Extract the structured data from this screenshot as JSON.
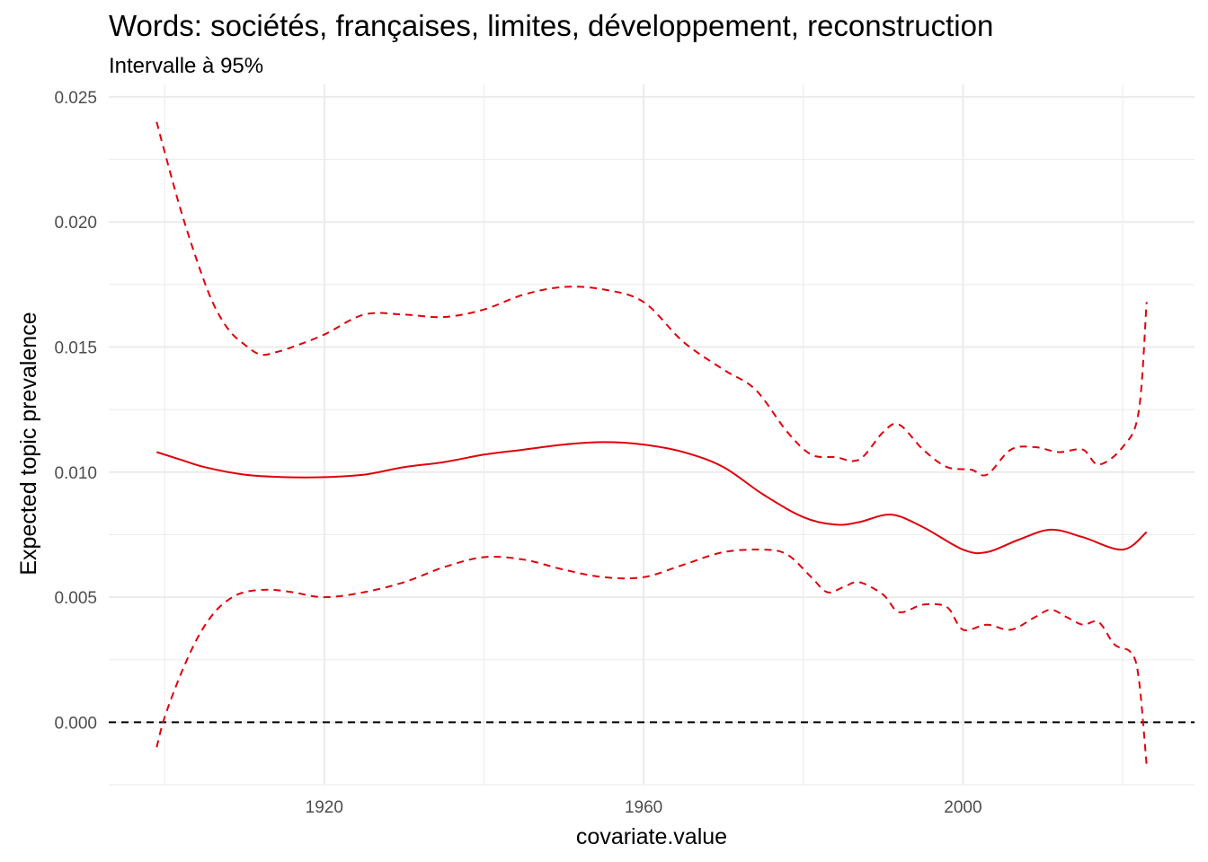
{
  "chart_data": {
    "type": "line",
    "title": "Words: sociétés, françaises, limites, développement, reconstruction",
    "subtitle": "Intervalle à 95%",
    "xlabel": "covariate.value",
    "ylabel": "Expected topic prevalence",
    "xlim": [
      1893,
      2029
    ],
    "ylim": [
      -0.0025,
      0.0255
    ],
    "x_ticks": [
      1920,
      1960,
      2000
    ],
    "x_tick_labels": [
      "1920",
      "1960",
      "2000"
    ],
    "y_ticks": [
      0.0,
      0.005,
      0.01,
      0.015,
      0.02,
      0.025
    ],
    "y_tick_labels": [
      "0.000",
      "0.005",
      "0.010",
      "0.015",
      "0.020",
      "0.025"
    ],
    "grid": true,
    "reference_line": {
      "y": 0,
      "style": "dashed",
      "color": "#000000"
    },
    "colors": {
      "series": "#e0000b",
      "reference": "#000000",
      "grid": "#ebebeb"
    },
    "series": [
      {
        "role": "estimate",
        "style": "solid",
        "x": [
          1899,
          1902,
          1905,
          1910,
          1915,
          1920,
          1925,
          1930,
          1935,
          1940,
          1945,
          1950,
          1955,
          1960,
          1965,
          1970,
          1975,
          1980,
          1984,
          1987,
          1991,
          1995,
          2000,
          2003,
          2007,
          2011,
          2015,
          2020,
          2023
        ],
        "y": [
          0.0108,
          0.0105,
          0.0102,
          0.0099,
          0.0098,
          0.0098,
          0.0099,
          0.0102,
          0.0104,
          0.0107,
          0.0109,
          0.0111,
          0.0112,
          0.0111,
          0.0108,
          0.0102,
          0.0091,
          0.0082,
          0.0079,
          0.008,
          0.0083,
          0.0078,
          0.0069,
          0.0068,
          0.0073,
          0.0077,
          0.0074,
          0.0069,
          0.0076
        ]
      },
      {
        "role": "upper 95%",
        "style": "dashed",
        "x": [
          1899,
          1900,
          1902,
          1904,
          1906,
          1908,
          1910,
          1912,
          1914,
          1916,
          1920,
          1925,
          1930,
          1935,
          1940,
          1945,
          1950,
          1955,
          1960,
          1965,
          1970,
          1974,
          1978,
          1981,
          1984,
          1987,
          1990,
          1992,
          1995,
          1998,
          2001,
          2003,
          2006,
          2009,
          2012,
          2015,
          2017,
          2020,
          2022,
          2023
        ],
        "y": [
          0.024,
          0.0228,
          0.0205,
          0.0185,
          0.0168,
          0.0157,
          0.0151,
          0.0147,
          0.0148,
          0.015,
          0.0155,
          0.0163,
          0.0163,
          0.0162,
          0.0165,
          0.0171,
          0.0174,
          0.0173,
          0.0168,
          0.0152,
          0.0141,
          0.0133,
          0.0116,
          0.0107,
          0.0106,
          0.0105,
          0.0116,
          0.0119,
          0.0109,
          0.0102,
          0.0101,
          0.0099,
          0.0109,
          0.011,
          0.0108,
          0.0109,
          0.0103,
          0.011,
          0.0124,
          0.0168
        ]
      },
      {
        "role": "lower 95%",
        "style": "dashed",
        "x": [
          1899,
          1900,
          1902,
          1904,
          1906,
          1908,
          1910,
          1913,
          1916,
          1920,
          1925,
          1930,
          1935,
          1940,
          1945,
          1950,
          1955,
          1960,
          1965,
          1970,
          1975,
          1978,
          1981,
          1983,
          1985,
          1987,
          1990,
          1992,
          1995,
          1998,
          2000,
          2003,
          2006,
          2009,
          2011,
          2013,
          2015,
          2017,
          2019,
          2021,
          2022,
          2023
        ],
        "y": [
          -0.001,
          0.0002,
          0.0019,
          0.0033,
          0.0043,
          0.0049,
          0.0052,
          0.0053,
          0.0052,
          0.005,
          0.0052,
          0.0056,
          0.0062,
          0.0066,
          0.0065,
          0.0061,
          0.0058,
          0.0058,
          0.0063,
          0.0068,
          0.0069,
          0.0067,
          0.0058,
          0.0052,
          0.0054,
          0.0056,
          0.0051,
          0.0044,
          0.0047,
          0.0046,
          0.0037,
          0.0039,
          0.0037,
          0.0042,
          0.0045,
          0.0042,
          0.0039,
          0.004,
          0.0031,
          0.0028,
          0.0018,
          -0.0017
        ]
      }
    ]
  }
}
